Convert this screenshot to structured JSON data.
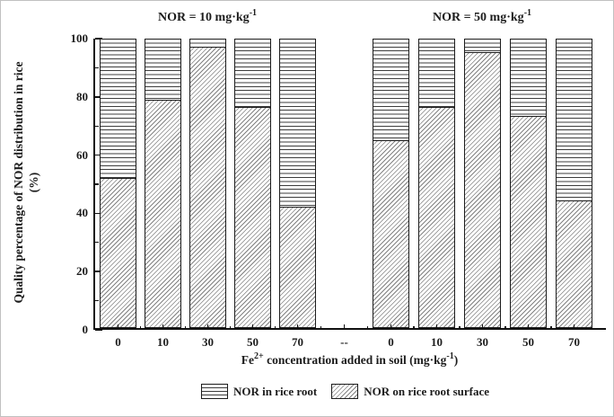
{
  "figure": {
    "y_axis": {
      "label_line1": "Quality percentage of NOR distribution in rice",
      "label_line2": "(%)",
      "tick_labels": [
        "0",
        "20",
        "40",
        "60",
        "80",
        "100"
      ]
    },
    "x_axis": {
      "title_parts": {
        "p1": "Fe",
        "sup1": "2+",
        "p2": " concentration added in soil (mg·kg",
        "sup2": "-1",
        "p3": ")"
      },
      "tick_labels": [
        "0",
        "10",
        "30",
        "50",
        "70",
        "--",
        "0",
        "10",
        "30",
        "50",
        "70"
      ]
    },
    "legend": {
      "items": [
        {
          "label": "NOR in rice root",
          "pattern": "horizontal-lines"
        },
        {
          "label": "NOR on rice root surface",
          "pattern": "diagonal-hatch"
        }
      ]
    }
  },
  "chart_data": {
    "type": "bar",
    "stacked": true,
    "orientation": "vertical",
    "title": "",
    "ylabel": "Quality percentage of NOR distribution in rice (%)",
    "xlabel": "Fe2+ concentration added in soil (mg·kg-1)",
    "ylim": [
      0,
      100
    ],
    "yticks_major": [
      0,
      20,
      40,
      60,
      80,
      100
    ],
    "yticks_minor": [
      10,
      30,
      50,
      70,
      90
    ],
    "grid": false,
    "legend_position": "bottom-center",
    "separator_label": "--",
    "group_titles": [
      {
        "text": "NOR = 10 mg·kg",
        "sup": "-1"
      },
      {
        "text": "NOR = 50 mg·kg",
        "sup": "-1"
      }
    ],
    "groups": [
      {
        "title": "NOR = 10 mg·kg-1",
        "categories": [
          "0",
          "10",
          "30",
          "50",
          "70"
        ],
        "series": [
          {
            "name": "NOR on rice root surface",
            "values": [
              52,
              79,
              97.5,
              76.5,
              42
            ]
          },
          {
            "name": "NOR in rice root",
            "values": [
              48,
              21,
              2.5,
              23.5,
              58
            ]
          }
        ]
      },
      {
        "title": "NOR = 50 mg·kg-1",
        "categories": [
          "0",
          "10",
          "30",
          "50",
          "70"
        ],
        "series": [
          {
            "name": "NOR on rice root surface",
            "values": [
              65,
              76.5,
              95.5,
              73.5,
              44
            ]
          },
          {
            "name": "NOR in rice root",
            "values": [
              35,
              23.5,
              4.5,
              26.5,
              56
            ]
          }
        ]
      }
    ],
    "colors": {
      "ink": "#1c1c1c",
      "hatch_gray": "#818181",
      "background": "#ffffff"
    }
  }
}
